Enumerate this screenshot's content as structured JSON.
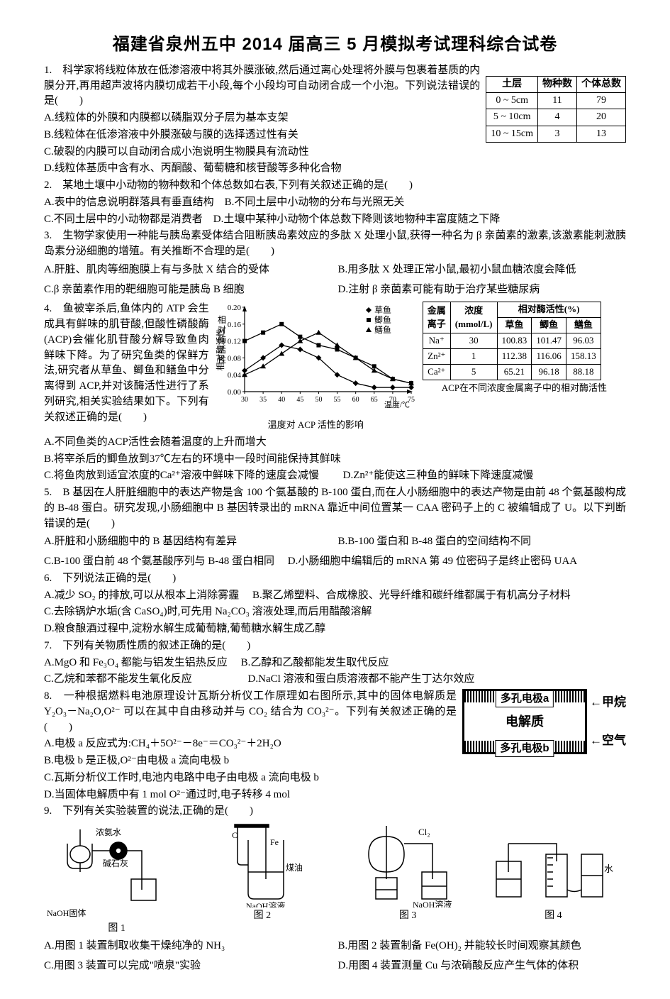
{
  "title": "福建省泉州五中 2014 届高三 5 月模拟考试理科综合试卷",
  "q1": {
    "stem": "1.　科学家将线粒体放在低渗溶液中将其外膜涨破,然后通过离心处理将外膜与包裹着基质的内膜分开,再用超声波将内膜切成若干小段,每个小段均可自动闭合成一个小泡。下列说法错误的是(　　)",
    "A": "A.线粒体的外膜和内膜都以磷脂双分子层为基本支架",
    "B": "B.线粒体在低渗溶液中外膜涨破与膜的选择透过性有关",
    "C": "C.破裂的内膜可以自动闭合成小泡说明生物膜具有流动性",
    "D": "D.线粒体基质中含有水、丙酮酸、葡萄糖和核苷酸等多种化合物"
  },
  "soilTable": {
    "header": [
      "土层",
      "物种数",
      "个体总数"
    ],
    "rows": [
      [
        "0 ~ 5cm",
        "11",
        "79"
      ],
      [
        "5 ~ 10cm",
        "4",
        "20"
      ],
      [
        "10 ~ 15cm",
        "3",
        "13"
      ]
    ]
  },
  "q2": {
    "stem": "2.　某地土壤中小动物的物种数和个体总数如右表,下列有关叙述正确的是(　　)",
    "AB": "A.表中的信息说明群落具有垂直结构　B.不同土层中小动物的分布与光照无关",
    "CD": "C.不同土层中的小动物都是消费者　D.土壤中某种小动物个体总数下降则该地物种丰富度随之下降"
  },
  "q3": {
    "stem": "3.　生物学家使用一种能与胰岛素受体结合阻断胰岛素效应的多肽 X 处理小鼠,获得一种名为 β 亲菌素的激素,该激素能刺激胰岛素分泌细胞的增殖。有关推断不合理的是(　　)",
    "A": "A.肝脏、肌肉等细胞膜上有与多肽 X 结合的受体",
    "B": "B.用多肽 X 处理正常小鼠,最初小鼠血糖浓度会降低",
    "C": "C.β 亲菌素作用的靶细胞可能是胰岛 B 细胞",
    "D": "D.注射 β 亲菌素可能有助于治疗某些糖尿病"
  },
  "q4": {
    "stem": "4.　鱼被宰杀后,鱼体内的 ATP 会生成具有鲜味的肌苷酸,但酸性磷酸酶(ACP)会催化肌苷酸分解导致鱼肉鲜味下降。为了研究鱼类的保鲜方法,研究者从草鱼、鲫鱼和鳝鱼中分离得到 ACP,并对该酶活性进行了系列研究,相关实验结果如下。下列有关叙述正确的是(　　)",
    "A": "A.不同鱼类的ACP活性会随着温度的上升而增大",
    "B": "B.将宰杀后的鲫鱼放到37℃左右的环境中一段时间能保持其鲜味",
    "C": "C.将鱼肉放到适宜浓度的Ca²⁺溶液中鲜味下降的速度会减慢",
    "D": "D.Zn²⁺能使这三种鱼的鲜味下降速度减慢"
  },
  "chart": {
    "type": "line",
    "title": "温度对 ACP 活性的影响",
    "xlabel": "温度/℃",
    "ylabel": "相对酶活性",
    "x": [
      30,
      35,
      40,
      45,
      50,
      55,
      60,
      65,
      70,
      75
    ],
    "xlim": [
      30,
      75
    ],
    "ylim": [
      0,
      0.2
    ],
    "yticks": [
      0.0,
      0.04,
      0.08,
      0.12,
      0.16,
      0.2
    ],
    "series": [
      {
        "name": "草鱼",
        "marker": "diamond",
        "color": "#000",
        "y": [
          0.05,
          0.08,
          0.11,
          0.1,
          0.08,
          0.04,
          0.02,
          0.01,
          0.01,
          0.01
        ]
      },
      {
        "name": "鲫鱼",
        "marker": "square",
        "color": "#000",
        "y": [
          0.12,
          0.14,
          0.16,
          0.13,
          0.11,
          0.1,
          0.08,
          0.06,
          0.03,
          0.02
        ]
      },
      {
        "name": "鳝鱼",
        "marker": "triangle",
        "color": "#000",
        "y": [
          0.04,
          0.06,
          0.09,
          0.12,
          0.14,
          0.11,
          0.08,
          0.05,
          0.03,
          0.02
        ]
      }
    ],
    "legend": [
      "草鱼",
      "鲫鱼",
      "鳝鱼"
    ],
    "background": "#ffffff",
    "axis_color": "#000000",
    "line_width": 1.3,
    "fontsize_axis": 12,
    "fontsize_legend": 13
  },
  "ionTable": {
    "caption": "ACP在不同浓度金属离子中的相对酶活性",
    "header": [
      "金属离子",
      "浓度 (mmol/L)",
      "相对酶活性(%) 草鱼",
      "鲫鱼",
      "鳝鱼"
    ],
    "rows": [
      [
        "Na⁺",
        "30",
        "100.83",
        "101.47",
        "96.03"
      ],
      [
        "Zn²⁺",
        "1",
        "112.38",
        "116.06",
        "158.13"
      ],
      [
        "Ca²⁺",
        "5",
        "65.21",
        "96.18",
        "88.18"
      ]
    ]
  },
  "q5": {
    "stem": "5.　B 基因在人肝脏细胞中的表达产物是含 100 个氨基酸的 B-100 蛋白,而在人小肠细胞中的表达产物是由前 48 个氨基酸构成的 B-48 蛋白。研究发现,小肠细胞中 B 基因转录出的 mRNA 靠近中间位置某一 CAA 密码子上的 C 被编辑成了 U。以下判断错误的是(　　)",
    "A": "A.肝脏和小肠细胞中的 B 基因结构有差异",
    "B": "B.B-100 蛋白和 B-48 蛋白的空间结构不同",
    "C": "C.B-100 蛋白前 48 个氨基酸序列与 B-48 蛋白相同",
    "D": "D.小肠细胞中编辑后的 mRNA 第 49 位密码子是终止密码 UAA"
  },
  "q6": {
    "stem": "6.　下列说法正确的是(　　)",
    "A": "A.减少 SO₂ 的排放,可以从根本上消除雾霾",
    "B": "B.聚乙烯塑料、合成橡胶、光导纤维和碳纤维都属于有机高分子材料",
    "C": "C.去除锅炉水垢(含 CaSO₄)时,可先用 Na₂CO₃ 溶液处理,而后用醋酸溶解",
    "D": "D.粮食酿酒过程中,淀粉水解生成葡萄糖,葡萄糖水解生成乙醇"
  },
  "q7": {
    "stem": "7.　下列有关物质性质的叙述正确的是(　　)",
    "A": "A.MgO 和 Fe₃O₄ 都能与铝发生铝热反应",
    "B": "B.乙醇和乙酸都能发生取代反应",
    "C": "C.乙烷和苯都不能发生氧化反应",
    "D": "D.NaCl 溶液和蛋白质溶液都不能产生丁达尔效应"
  },
  "q8": {
    "stem": "8.　一种根据燃料电池原理设计瓦斯分析仪工作原理如右图所示,其中的固体电解质是 Y₂O₃－Na₂O,O²⁻ 可以在其中自由移动并与 CO₂ 结合为 CO₃²⁻。下列有关叙述正确的是(　　)",
    "A": "A.电极 a 反应式为:CH₄＋5O²⁻－8e⁻＝CO₃²⁻＋2H₂O",
    "B": "B.电极 b 是正极,O²⁻由电极 a 流向电极 b",
    "C": "C.瓦斯分析仪工作时,电池内电路中电子由电极 a 流向电极 b",
    "D": "D.当固体电解质中有 1 mol O²⁻通过时,电子转移 4 mol"
  },
  "fuelcell": {
    "top": "多孔电极a",
    "mid": "电解质",
    "bot": "多孔电极b",
    "right_top": "甲烷",
    "right_bot": "空气"
  },
  "q9": {
    "stem": "9.　下列有关实验装置的说法,正确的是(　　)",
    "labels": [
      "图 1",
      "图 2",
      "图 3",
      "图 4"
    ],
    "notes": [
      "浓氨水 / 碱石灰 / NaOH固体",
      "Fe / 煤油 / NaOH溶液",
      "Cl₂ / NaOH溶液",
      "水"
    ],
    "A": "A.用图 1 装置制取收集干燥纯净的 NH₃",
    "B": "B.用图 2 装置制备 Fe(OH)₂ 并能较长时间观察其颜色",
    "C": "C.用图 3 装置可以完成\"喷泉\"实验",
    "D": "D.用图 4 装置测量 Cu 与浓硝酸反应产生气体的体积"
  }
}
